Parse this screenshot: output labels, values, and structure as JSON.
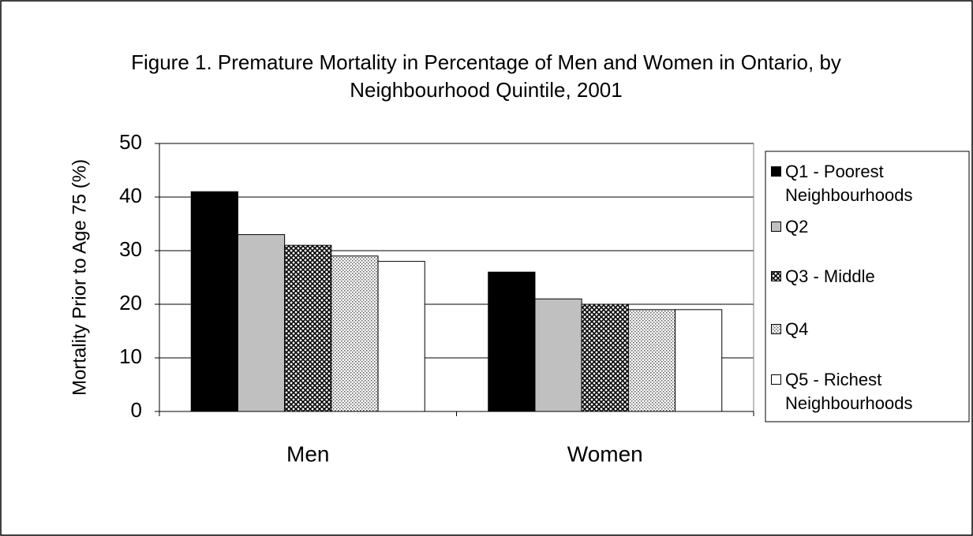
{
  "chart_data": {
    "type": "bar",
    "title": "Figure 1. Premature Mortality in Percentage of Men and Women in Ontario, by Neighbourhood Quintile, 2001",
    "y_label": "Mortality Prior to Age 75 (%)",
    "categories": [
      "Men",
      "Women"
    ],
    "series": [
      {
        "name": "Q1 - Poorest Neighbourhoods",
        "color": "#000000",
        "pattern": "solid",
        "values": [
          41,
          26
        ]
      },
      {
        "name": "Q2",
        "color": "#c0c0c0",
        "pattern": "solid",
        "values": [
          33,
          21
        ]
      },
      {
        "name": "Q3 - Middle",
        "color": "#808080",
        "pattern": "crosshatch",
        "values": [
          31,
          20
        ]
      },
      {
        "name": "Q4",
        "color": "#d9d9d9",
        "pattern": "dots",
        "values": [
          29,
          19
        ]
      },
      {
        "name": "Q5 - Richest Neighbourhoods",
        "color": "#ffffff",
        "pattern": "solid",
        "values": [
          28,
          19
        ]
      }
    ],
    "ylim": [
      0,
      50
    ],
    "yticks": [
      0,
      10,
      20,
      30,
      40,
      50
    ],
    "grid": true,
    "legend": "right"
  }
}
